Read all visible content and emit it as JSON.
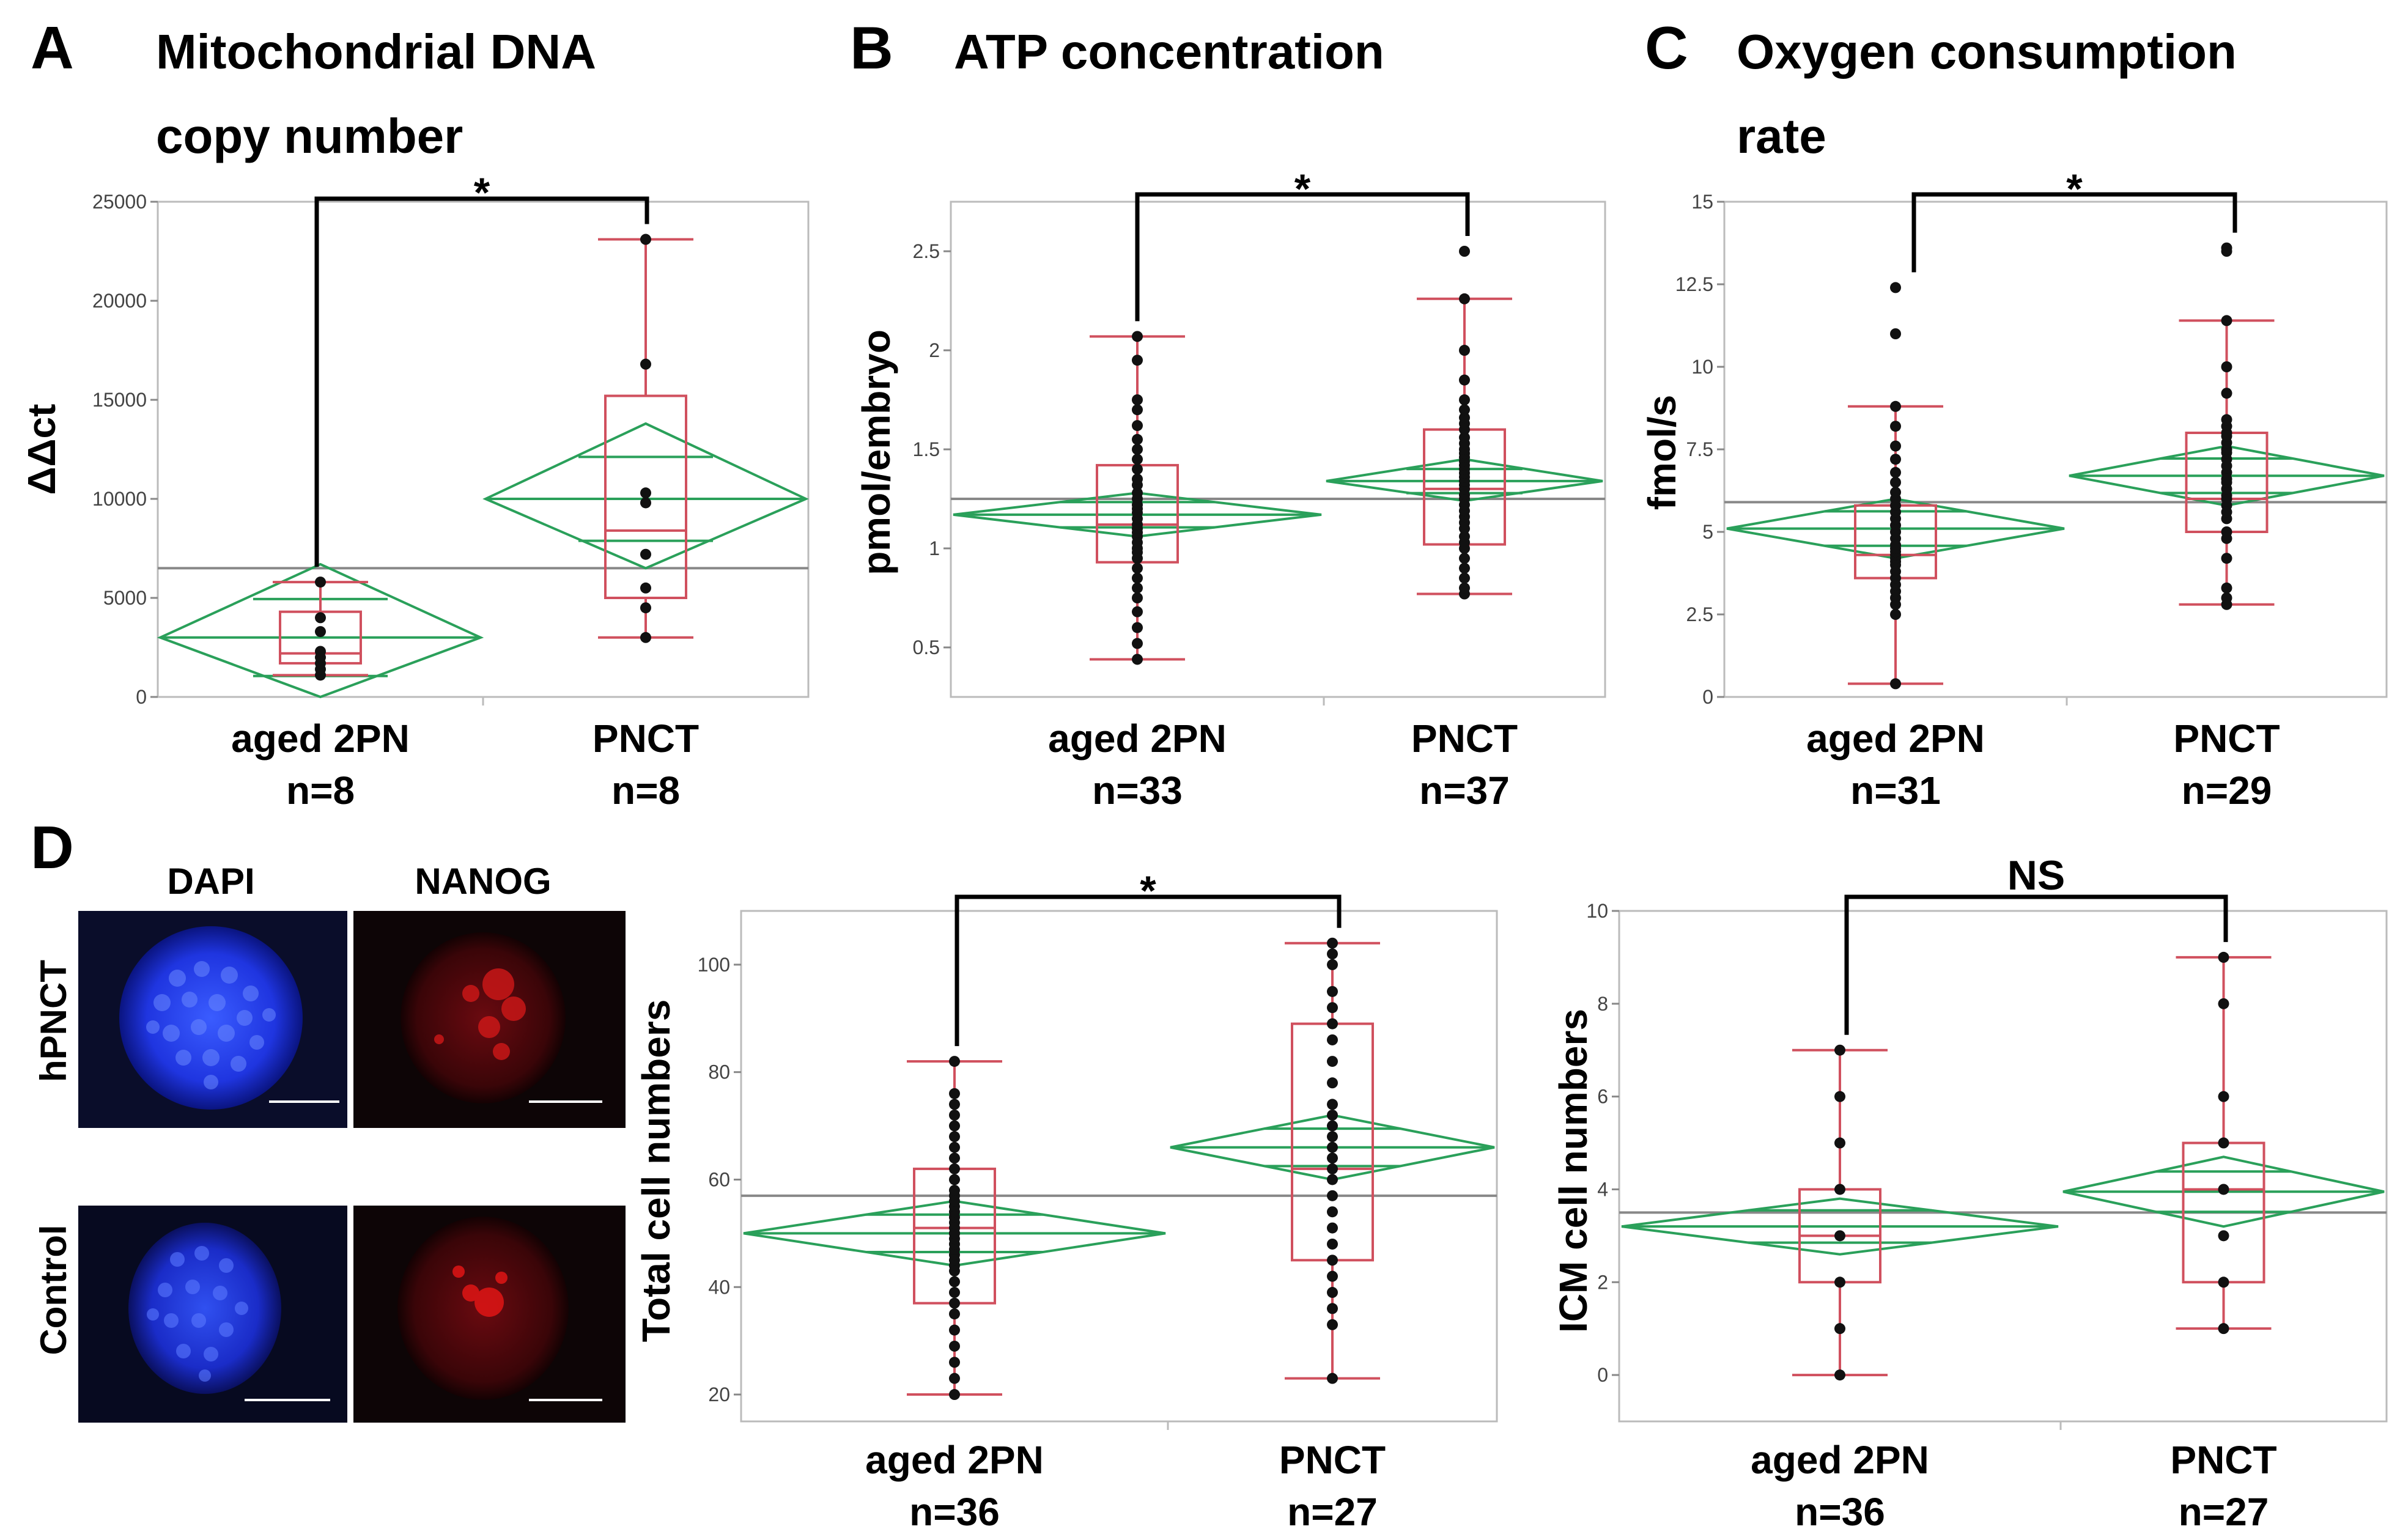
{
  "chart_data": [
    {
      "panel": "A",
      "type": "box",
      "title_lines": [
        "Mitochondrial DNA",
        "copy number"
      ],
      "ylabel": "ΔΔct",
      "ylim": [
        0,
        25000
      ],
      "yticks": [
        {
          "v": 0,
          "label": "0"
        },
        {
          "v": 5000,
          "label": "5000"
        },
        {
          "v": 10000,
          "label": "10000"
        },
        {
          "v": 15000,
          "label": "15000"
        },
        {
          "v": 20000,
          "label": "20000"
        },
        {
          "v": 25000,
          "label": "25000"
        }
      ],
      "grand_mean": 6500,
      "significance": "*",
      "groups": [
        {
          "name": "aged 2PN",
          "n_label": "n=8",
          "mean": 3000,
          "ci": [
            0,
            6700
          ],
          "box": {
            "min": 1100,
            "q1": 1700,
            "median": 2200,
            "q3": 4300,
            "max": 5800
          },
          "points": [
            1100,
            1400,
            1700,
            2000,
            2300,
            3300,
            4000,
            5800
          ]
        },
        {
          "name": "PNCT",
          "n_label": "n=8",
          "mean": 10000,
          "ci": [
            6500,
            13800
          ],
          "box": {
            "min": 3000,
            "q1": 5000,
            "median": 8400,
            "q3": 15200,
            "max": 23100
          },
          "points": [
            3000,
            4500,
            5500,
            7200,
            9800,
            10300,
            16800,
            23100
          ]
        }
      ]
    },
    {
      "panel": "B",
      "type": "box",
      "title_lines": [
        "ATP concentration"
      ],
      "ylabel": "pmol/embryo",
      "ylim": [
        0.25,
        2.75
      ],
      "yticks": [
        {
          "v": 0.5,
          "label": "0.5"
        },
        {
          "v": 1,
          "label": "1"
        },
        {
          "v": 1.5,
          "label": "1.5"
        },
        {
          "v": 2,
          "label": "2"
        },
        {
          "v": 2.5,
          "label": "2.5"
        }
      ],
      "grand_mean": 1.25,
      "significance": "*",
      "groups": [
        {
          "name": "aged 2PN",
          "n_label": "n=33",
          "mean": 1.17,
          "ci": [
            1.06,
            1.28
          ],
          "box": {
            "min": 0.44,
            "q1": 0.93,
            "median": 1.12,
            "q3": 1.42,
            "max": 2.07
          },
          "points": [
            0.44,
            0.52,
            0.6,
            0.68,
            0.75,
            0.8,
            0.85,
            0.9,
            0.95,
            0.98,
            1.0,
            1.03,
            1.06,
            1.08,
            1.1,
            1.12,
            1.15,
            1.18,
            1.2,
            1.22,
            1.25,
            1.28,
            1.32,
            1.35,
            1.4,
            1.45,
            1.5,
            1.55,
            1.62,
            1.7,
            1.75,
            1.95,
            2.07
          ]
        },
        {
          "name": "PNCT",
          "n_label": "n=37",
          "mean": 1.34,
          "ci": [
            1.24,
            1.45
          ],
          "box": {
            "min": 0.77,
            "q1": 1.02,
            "median": 1.3,
            "q3": 1.6,
            "max": 2.26
          },
          "points": [
            0.77,
            0.8,
            0.85,
            0.9,
            0.95,
            1.0,
            1.03,
            1.06,
            1.1,
            1.13,
            1.16,
            1.19,
            1.22,
            1.25,
            1.27,
            1.3,
            1.32,
            1.34,
            1.36,
            1.38,
            1.4,
            1.42,
            1.44,
            1.46,
            1.48,
            1.5,
            1.53,
            1.56,
            1.6,
            1.63,
            1.66,
            1.7,
            1.75,
            1.85,
            2.0,
            2.26,
            2.5
          ]
        }
      ]
    },
    {
      "panel": "C",
      "type": "box",
      "title_lines": [
        "Oxygen consumption",
        "rate"
      ],
      "ylabel": "fmol/s",
      "ylim": [
        0,
        15
      ],
      "yticks": [
        {
          "v": 0,
          "label": "0"
        },
        {
          "v": 2.5,
          "label": "2.5"
        },
        {
          "v": 5,
          "label": "5"
        },
        {
          "v": 7.5,
          "label": "7.5"
        },
        {
          "v": 10,
          "label": "10"
        },
        {
          "v": 12.5,
          "label": "12.5"
        },
        {
          "v": 15,
          "label": "15"
        }
      ],
      "grand_mean": 5.9,
      "significance": "*",
      "groups": [
        {
          "name": "aged 2PN",
          "n_label": "n=31",
          "mean": 5.1,
          "ci": [
            4.2,
            6.0
          ],
          "box": {
            "min": 0.4,
            "q1": 3.6,
            "median": 4.3,
            "q3": 5.8,
            "max": 8.8
          },
          "points": [
            0.4,
            2.5,
            2.8,
            3.0,
            3.2,
            3.4,
            3.6,
            3.8,
            4.0,
            4.1,
            4.2,
            4.3,
            4.4,
            4.6,
            4.8,
            5.0,
            5.2,
            5.4,
            5.6,
            5.8,
            6.0,
            6.2,
            6.5,
            6.8,
            7.2,
            7.6,
            8.2,
            8.8,
            11.0,
            12.4,
            4.5
          ]
        },
        {
          "name": "PNCT",
          "n_label": "n=29",
          "mean": 6.7,
          "ci": [
            5.8,
            7.6
          ],
          "box": {
            "min": 2.8,
            "q1": 5.0,
            "median": 6.0,
            "q3": 8.0,
            "max": 11.4
          },
          "points": [
            2.8,
            3.0,
            3.3,
            4.2,
            4.8,
            5.0,
            5.4,
            5.8,
            6.0,
            6.1,
            6.3,
            6.5,
            6.8,
            7.0,
            7.2,
            7.4,
            7.5,
            7.7,
            8.0,
            8.2,
            8.4,
            9.2,
            10.0,
            11.4,
            13.5,
            13.6,
            5.6,
            6.6,
            7.9
          ]
        }
      ]
    },
    {
      "panel": "D-total",
      "type": "box",
      "ylabel": "Total cell numbers",
      "ylim": [
        15,
        110
      ],
      "yticks": [
        {
          "v": 20,
          "label": "20"
        },
        {
          "v": 40,
          "label": "40"
        },
        {
          "v": 60,
          "label": "60"
        },
        {
          "v": 80,
          "label": "80"
        },
        {
          "v": 100,
          "label": "100"
        }
      ],
      "grand_mean": 57,
      "significance": "*",
      "groups": [
        {
          "name": "aged 2PN",
          "n_label": "n=36",
          "mean": 50,
          "ci": [
            44,
            56
          ],
          "box": {
            "min": 20,
            "q1": 37,
            "median": 51,
            "q3": 62,
            "max": 82
          },
          "points": [
            20,
            23,
            26,
            29,
            32,
            35,
            37,
            39,
            41,
            43,
            44,
            45,
            46,
            47,
            48,
            49,
            50,
            51,
            52,
            53,
            54,
            55,
            56,
            57,
            58,
            60,
            62,
            64,
            66,
            68,
            70,
            72,
            74,
            76,
            82,
            50
          ]
        },
        {
          "name": "PNCT",
          "n_label": "n=27",
          "mean": 66,
          "ci": [
            60,
            72
          ],
          "box": {
            "min": 23,
            "q1": 45,
            "median": 62,
            "q3": 89,
            "max": 104
          },
          "points": [
            23,
            33,
            36,
            39,
            42,
            45,
            48,
            51,
            54,
            57,
            60,
            62,
            64,
            66,
            68,
            70,
            72,
            74,
            78,
            82,
            86,
            89,
            92,
            95,
            100,
            102,
            104
          ]
        }
      ]
    },
    {
      "panel": "D-icm",
      "type": "box",
      "ylabel": "ICM cell numbers",
      "ylim": [
        -1,
        10
      ],
      "yticks": [
        {
          "v": 0,
          "label": "0"
        },
        {
          "v": 2,
          "label": "2"
        },
        {
          "v": 4,
          "label": "4"
        },
        {
          "v": 6,
          "label": "6"
        },
        {
          "v": 8,
          "label": "8"
        },
        {
          "v": 10,
          "label": "10"
        }
      ],
      "grand_mean": 3.5,
      "significance": "NS",
      "groups": [
        {
          "name": "aged 2PN",
          "n_label": "n=36",
          "mean": 3.2,
          "ci": [
            2.6,
            3.8
          ],
          "box": {
            "min": 0,
            "q1": 2,
            "median": 3,
            "q3": 4,
            "max": 7
          },
          "points": [
            0,
            1,
            2,
            3,
            4,
            5,
            6,
            7
          ]
        },
        {
          "name": "PNCT",
          "n_label": "n=27",
          "mean": 3.95,
          "ci": [
            3.2,
            4.7
          ],
          "box": {
            "min": 1,
            "q1": 2,
            "median": 4,
            "q3": 5,
            "max": 9
          },
          "points": [
            1,
            2,
            3,
            4,
            5,
            6,
            8,
            9
          ]
        }
      ]
    }
  ],
  "panel_d": {
    "letter": "D",
    "column_labels": [
      "DAPI",
      "NANOG"
    ],
    "row_labels": [
      "hPNCT",
      "Control"
    ]
  },
  "colors": {
    "box": "#d0505e",
    "diamond": "#2aa05a",
    "grand_mean": "#888888",
    "frame": "#bbbbbb",
    "dapi_bg": "#0a0d2a",
    "nanog_bg": "#0d0506"
  }
}
